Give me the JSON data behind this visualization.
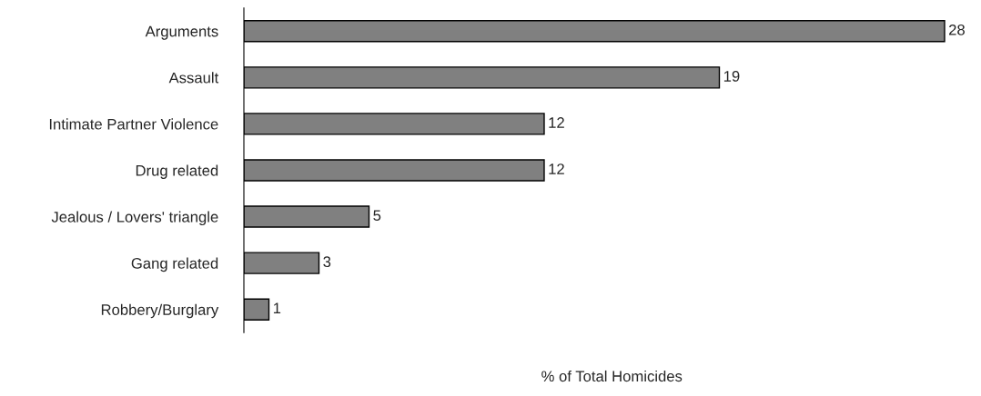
{
  "chart_data": {
    "type": "bar",
    "orientation": "horizontal",
    "xlabel": "% of Total Homicides",
    "categories": [
      "Arguments",
      "Assault",
      "Intimate Partner Violence",
      "Drug related",
      "Jealous / Lovers' triangle",
      "Gang related",
      "Robbery/Burglary"
    ],
    "values": [
      28,
      19,
      12,
      12,
      5,
      3,
      1
    ],
    "color": "#808080",
    "data_labels": true,
    "tick_labels": "y",
    "grid": false,
    "legend": false
  }
}
